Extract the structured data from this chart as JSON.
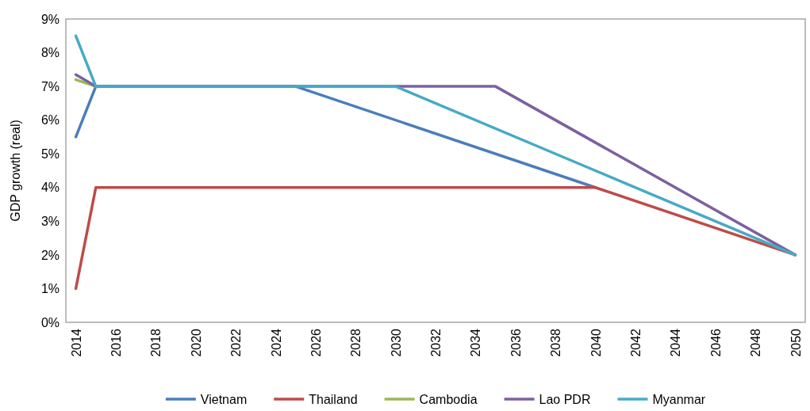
{
  "chart_data": {
    "type": "line",
    "ylabel": "GDP growth (real)",
    "xlim": [
      2013.5,
      2050.5
    ],
    "xticks": [
      2014,
      2016,
      2018,
      2020,
      2022,
      2024,
      2026,
      2028,
      2030,
      2032,
      2034,
      2036,
      2038,
      2040,
      2042,
      2044,
      2046,
      2048,
      2050
    ],
    "ylim": [
      0,
      9
    ],
    "yticks": [
      {
        "value": 0,
        "label": "0%"
      },
      {
        "value": 1,
        "label": "1%"
      },
      {
        "value": 2,
        "label": "2%"
      },
      {
        "value": 3,
        "label": "3%"
      },
      {
        "value": 4,
        "label": "4%"
      },
      {
        "value": 5,
        "label": "5%"
      },
      {
        "value": 6,
        "label": "6%"
      },
      {
        "value": 7,
        "label": "7%"
      },
      {
        "value": 8,
        "label": "8%"
      },
      {
        "value": 9,
        "label": "9%"
      }
    ],
    "grid": false,
    "legend": "bottom",
    "marker": "none",
    "line_style": "solid",
    "series": [
      {
        "name": "Vietnam",
        "color": "#4a7ebb",
        "x": [
          2014,
          2015,
          2025,
          2040
        ],
        "values": [
          5.5,
          7,
          7,
          4
        ]
      },
      {
        "name": "Thailand",
        "color": "#be4b48",
        "x": [
          2014,
          2015,
          2040,
          2050
        ],
        "values": [
          1,
          4,
          4,
          2
        ]
      },
      {
        "name": "Cambodia",
        "color": "#98b954",
        "x": [
          2014,
          2015
        ],
        "values": [
          7.2,
          7
        ]
      },
      {
        "name": "Lao PDR",
        "color": "#7d60a0",
        "x": [
          2014,
          2015,
          2035,
          2050
        ],
        "values": [
          7.35,
          7,
          7,
          2
        ]
      },
      {
        "name": "Myanmar",
        "color": "#46aac5",
        "x": [
          2014,
          2015,
          2030,
          2040,
          2050
        ],
        "values": [
          8.5,
          7,
          7,
          4.5,
          2
        ]
      }
    ]
  }
}
